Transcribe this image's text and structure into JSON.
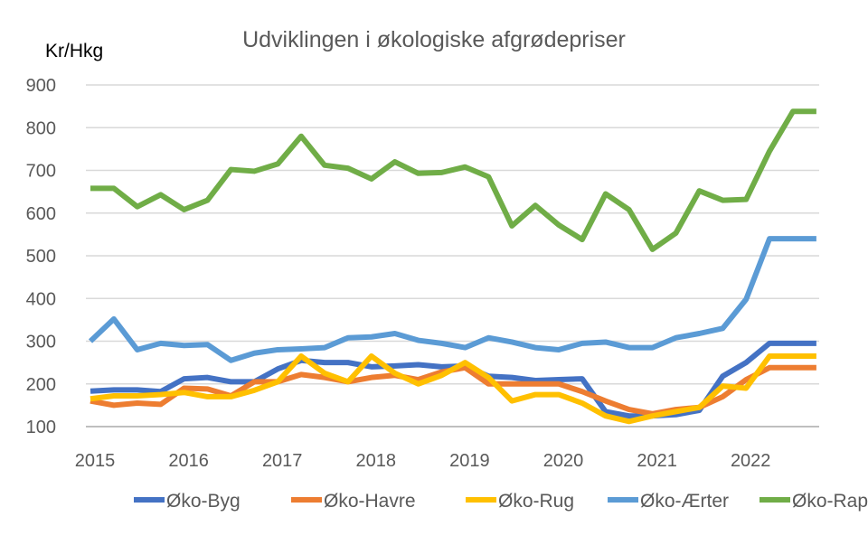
{
  "chart_data": {
    "type": "line",
    "title": "Udviklingen i økologiske afgrødepriser",
    "ylabel": "Kr/Hkg",
    "xlabel": "",
    "ylim": [
      100,
      900
    ],
    "yticks": [
      100,
      200,
      300,
      400,
      500,
      600,
      700,
      800,
      900
    ],
    "xticks": [
      "2015",
      "2016",
      "2017",
      "2018",
      "2019",
      "2020",
      "2021",
      "2022"
    ],
    "x_start": 2015,
    "x_step_per_point": 0.25,
    "grid": true,
    "legend_position": "bottom",
    "series": [
      {
        "name": "Øko-Byg",
        "color": "#4472C4",
        "values": [
          183,
          186,
          186,
          182,
          212,
          215,
          205,
          205,
          235,
          255,
          250,
          250,
          240,
          242,
          245,
          240,
          242,
          218,
          215,
          208,
          210,
          212,
          135,
          125,
          125,
          128,
          138,
          218,
          250,
          295,
          295,
          295
        ]
      },
      {
        "name": "Øko-Havre",
        "color": "#ED7D31",
        "values": [
          160,
          150,
          155,
          152,
          190,
          188,
          172,
          205,
          205,
          222,
          215,
          205,
          215,
          220,
          210,
          228,
          238,
          200,
          200,
          200,
          200,
          182,
          160,
          140,
          130,
          140,
          145,
          170,
          210,
          238,
          238,
          238
        ]
      },
      {
        "name": "Øko-Rug",
        "color": "#FFC000",
        "values": [
          165,
          172,
          172,
          175,
          180,
          170,
          170,
          185,
          205,
          265,
          225,
          205,
          265,
          225,
          200,
          220,
          250,
          215,
          160,
          175,
          175,
          155,
          125,
          112,
          125,
          135,
          145,
          195,
          190,
          265,
          265,
          265
        ]
      },
      {
        "name": "Øko-Ærter",
        "color": "#5B9BD5",
        "values": [
          300,
          352,
          280,
          295,
          290,
          292,
          255,
          272,
          280,
          282,
          285,
          308,
          310,
          318,
          302,
          295,
          285,
          308,
          298,
          285,
          280,
          295,
          298,
          285,
          285,
          308,
          318,
          330,
          398,
          540,
          540,
          540
        ]
      },
      {
        "name": "Øko-Raps",
        "color": "#70AD47",
        "values": [
          658,
          658,
          615,
          643,
          608,
          630,
          702,
          698,
          715,
          780,
          712,
          705,
          680,
          720,
          693,
          695,
          708,
          685,
          570,
          618,
          572,
          538,
          645,
          608,
          515,
          553,
          652,
          630,
          632,
          745,
          838,
          838
        ]
      }
    ]
  }
}
